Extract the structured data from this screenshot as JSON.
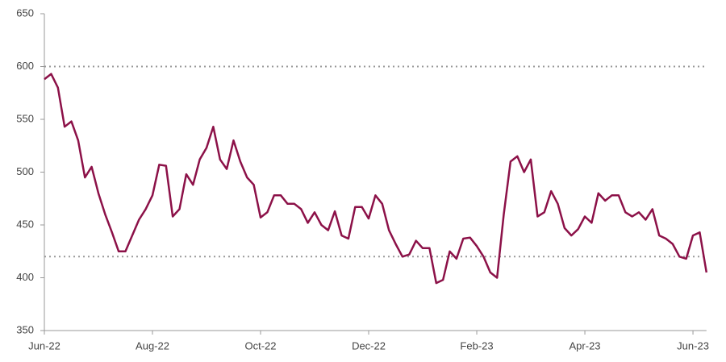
{
  "chart_data": {
    "type": "line",
    "categories": [
      "Jun-22",
      null,
      null,
      null,
      null,
      null,
      null,
      null,
      null,
      null,
      null,
      null,
      null,
      null,
      null,
      null,
      "Aug-22",
      null,
      null,
      null,
      null,
      null,
      null,
      null,
      null,
      null,
      null,
      null,
      null,
      null,
      null,
      null,
      "Oct-22",
      null,
      null,
      null,
      null,
      null,
      null,
      null,
      null,
      null,
      null,
      null,
      null,
      null,
      null,
      null,
      "Dec-22",
      null,
      null,
      null,
      null,
      null,
      null,
      null,
      null,
      null,
      null,
      null,
      null,
      null,
      null,
      null,
      "Feb-23",
      null,
      null,
      null,
      null,
      null,
      null,
      null,
      null,
      null,
      null,
      null,
      null,
      null,
      null,
      null,
      "Apr-23",
      null,
      null,
      null,
      null,
      null,
      null,
      null,
      null,
      null,
      null,
      null,
      null,
      null,
      null,
      null,
      "Jun-23",
      null,
      null
    ],
    "values": [
      588,
      593,
      580,
      543,
      548,
      530,
      495,
      505,
      480,
      460,
      443,
      425,
      425,
      440,
      455,
      465,
      478,
      507,
      506,
      458,
      465,
      498,
      488,
      512,
      523,
      543,
      512,
      503,
      530,
      510,
      495,
      488,
      457,
      462,
      478,
      478,
      470,
      470,
      465,
      452,
      462,
      450,
      445,
      463,
      440,
      437,
      467,
      467,
      456,
      478,
      470,
      445,
      432,
      420,
      422,
      435,
      428,
      428,
      395,
      398,
      425,
      418,
      437,
      438,
      430,
      420,
      405,
      400,
      460,
      510,
      515,
      500,
      512,
      458,
      462,
      482,
      470,
      447,
      440,
      446,
      458,
      452,
      480,
      473,
      478,
      478,
      462,
      458,
      462,
      455,
      465,
      440,
      437,
      432,
      420,
      418,
      440,
      443,
      405
    ],
    "color": "#8c1148",
    "ylim": [
      350,
      650
    ],
    "yticks": [
      350,
      400,
      450,
      500,
      550,
      600,
      650
    ],
    "reference_lines": [
      600,
      420
    ]
  }
}
